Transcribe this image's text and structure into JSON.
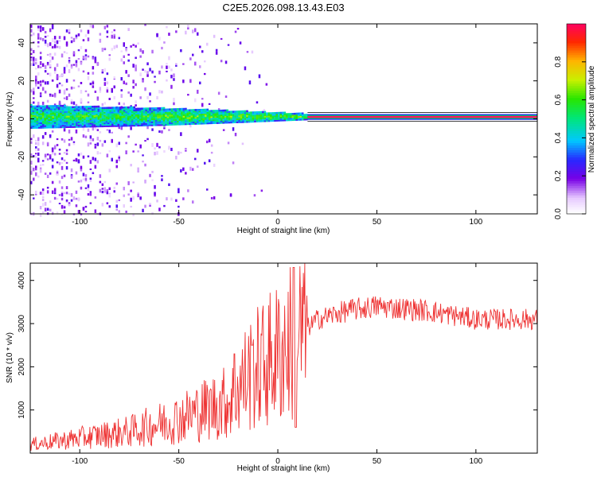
{
  "chart_data": [
    {
      "type": "heatmap",
      "title": "C2E5.2026.098.13.43.E03",
      "xlabel": "Height of straight line (km)",
      "ylabel": "Frequency (Hz)",
      "xlim": [
        -125,
        131
      ],
      "ylim": [
        -50,
        50
      ],
      "xticks": [
        -100,
        -50,
        0,
        50,
        100
      ],
      "yticks": [
        -40,
        -20,
        0,
        20,
        40
      ],
      "colorbar": {
        "label": "Normalized spectral amplitude",
        "range": [
          0,
          1
        ],
        "ticks": [
          "0.0",
          "0.2",
          "0.4",
          "0.6",
          "0.8"
        ]
      },
      "description_of_values": {
        "band_center_hz": 1,
        "band_halfwidth_hz_profile": [
          {
            "x": -125,
            "hw": 6
          },
          {
            "x": -60,
            "hw": 4.5
          },
          {
            "x": -20,
            "hw": 3
          },
          {
            "x": 15,
            "hw": 1.5
          },
          {
            "x": 131,
            "hw": 1.5
          }
        ],
        "steady_line_from_km": 15,
        "steady_line_amplitude": 0.95
      }
    },
    {
      "type": "line",
      "xlabel": "Height of straight line (km)",
      "ylabel": "SNR (10 * v/v)",
      "xlim": [
        -125,
        131
      ],
      "ylim": [
        0,
        4400
      ],
      "xticks": [
        -100,
        -50,
        0,
        50,
        100
      ],
      "yticks": [
        1000,
        2000,
        3000,
        4000
      ],
      "series": [
        {
          "name": "SNR",
          "color": "#ee3333",
          "envelope": [
            {
              "x": -125,
              "y": 200
            },
            {
              "x": -100,
              "y": 350
            },
            {
              "x": -75,
              "y": 500
            },
            {
              "x": -50,
              "y": 800
            },
            {
              "x": -25,
              "y": 1200
            },
            {
              "x": -15,
              "y": 1800
            },
            {
              "x": 0,
              "y": 2300
            },
            {
              "x": 10,
              "y": 2700
            },
            {
              "x": 20,
              "y": 3100
            },
            {
              "x": 35,
              "y": 3300
            },
            {
              "x": 50,
              "y": 3400
            },
            {
              "x": 75,
              "y": 3300
            },
            {
              "x": 100,
              "y": 3100
            },
            {
              "x": 131,
              "y": 3100
            }
          ],
          "spikes": [
            {
              "x": -22,
              "y": 2300
            },
            {
              "x": -13,
              "y": 2500
            },
            {
              "x": 8,
              "y": 4300
            },
            {
              "x": 9,
              "y": 600
            }
          ]
        }
      ]
    }
  ]
}
